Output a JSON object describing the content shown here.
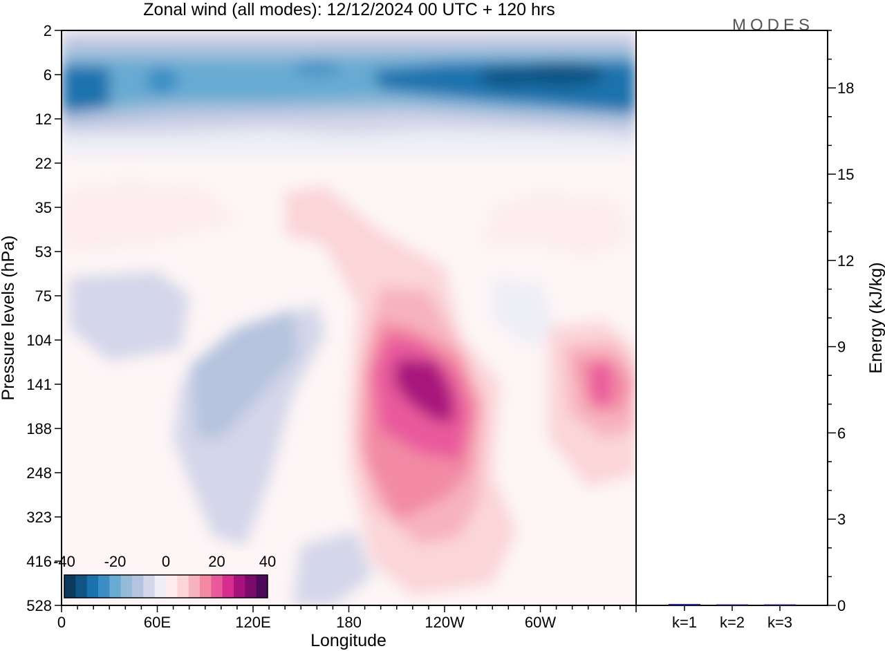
{
  "brand": "MODES",
  "chart_data": [
    {
      "type": "heatmap",
      "title": "Zonal wind (all modes):  12/12/2024  00 UTC  + 120 hrs",
      "xlabel": "Longitude",
      "ylabel": "Pressure levels (hPa)",
      "x_ticks": [
        "0",
        "60E",
        "120E",
        "180",
        "120W",
        "60W"
      ],
      "y_ticks": [
        "2",
        "6",
        "12",
        "22",
        "35",
        "53",
        "75",
        "104",
        "141",
        "188",
        "248",
        "323",
        "416",
        "528"
      ],
      "colorbar": {
        "tick_labels": [
          "-40",
          "-20",
          "0",
          "20",
          "40"
        ],
        "range": [
          -40,
          40
        ],
        "colors": [
          "#0b3a5c",
          "#0e5585",
          "#1a72ad",
          "#3a8ec4",
          "#68aad2",
          "#94bcd8",
          "#b6c3de",
          "#d4d6e9",
          "#eeeef6",
          "#fdecee",
          "#fbd5d8",
          "#f7b3bd",
          "#f28aa4",
          "#e95a9c",
          "#d62d8f",
          "#a8127c",
          "#7c0a6b",
          "#4d0a5a"
        ]
      },
      "features": [
        {
          "label": "easterly jet (stratosphere)",
          "lon_range": [
            0,
            357
          ],
          "plev_range": [
            4,
            16
          ],
          "peak_value": -35
        },
        {
          "label": "westerly jet central Pacific",
          "lon_center": 235,
          "plev_center": 140,
          "peak_value": 28
        },
        {
          "label": "westerly jet east Pacific",
          "lon_center": 335,
          "plev_center": 140,
          "peak_value": 20
        },
        {
          "label": "easterly band",
          "lon_range": [
            60,
            150
          ],
          "plev_range": [
            60,
            300
          ],
          "peak_value": -8
        }
      ]
    },
    {
      "type": "bar",
      "categories": [
        "k=1",
        "k=2",
        "k=3"
      ],
      "values": [
        0.05,
        0.01,
        0.01
      ],
      "ylabel": "Energy (kJ/kg)",
      "y_ticks": [
        "0",
        "3",
        "6",
        "9",
        "12",
        "15",
        "18"
      ],
      "ylim": [
        0,
        20
      ],
      "bar_color": "#1f1f8f"
    }
  ]
}
